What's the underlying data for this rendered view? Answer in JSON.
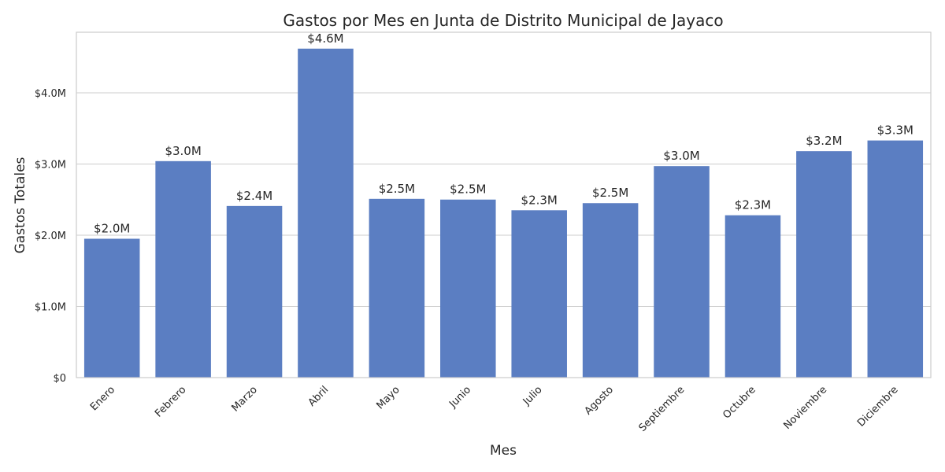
{
  "chart_data": {
    "type": "bar",
    "title": "Gastos por Mes en Junta de Distrito Municipal de Jayaco",
    "xlabel": "Mes",
    "ylabel": "Gastos Totales",
    "categories": [
      "Enero",
      "Febrero",
      "Marzo",
      "Abril",
      "Mayo",
      "Junio",
      "Julio",
      "Agosto",
      "Septiembre",
      "Octubre",
      "Noviembre",
      "Diciembre"
    ],
    "values": [
      1950000,
      3040000,
      2410000,
      4620000,
      2510000,
      2500000,
      2350000,
      2450000,
      2970000,
      2280000,
      3180000,
      3330000
    ],
    "data_labels": [
      "$2.0M",
      "$3.0M",
      "$2.4M",
      "$4.6M",
      "$2.5M",
      "$2.5M",
      "$2.3M",
      "$2.5M",
      "$3.0M",
      "$2.3M",
      "$3.2M",
      "$3.3M"
    ],
    "yticks": [
      0,
      1000000,
      2000000,
      3000000,
      4000000
    ],
    "ytick_labels": [
      "$0",
      "$1.0M",
      "$2.0M",
      "$3.0M",
      "$4.0M"
    ],
    "ylim": [
      0,
      4850000
    ],
    "grid": "horizontal",
    "bar_color": "#5b7ec2"
  }
}
